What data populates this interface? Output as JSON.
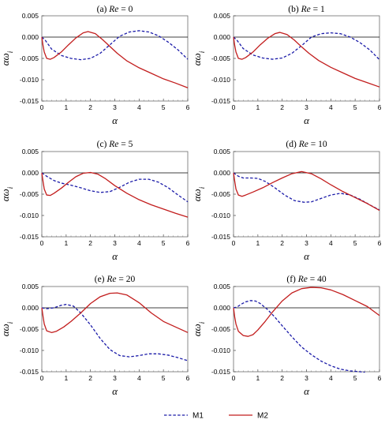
{
  "colors": {
    "m1": "#1a1aa8",
    "m2": "#c21d1d",
    "axis": "#000000"
  },
  "legend": {
    "placement": "bottom-center",
    "items": [
      "M1",
      "M2"
    ]
  },
  "chart_data": [
    {
      "type": "line",
      "title_prefix": "(a)",
      "title_var": "Re",
      "title_rest": " = 0",
      "xlabel": "α",
      "ylabel": "αω",
      "ylabel_sub": "i",
      "xlim": [
        0,
        6
      ],
      "ylim": [
        -0.015,
        0.005
      ],
      "xticks": [
        "0",
        "1",
        "2",
        "3",
        "4",
        "5",
        "6"
      ],
      "yticks": [
        "0.005",
        "0.000",
        "-0.005",
        "-0.010",
        "-0.015"
      ],
      "series": [
        {
          "name": "M1",
          "style": "dashed",
          "x": [
            0,
            0.15,
            0.4,
            0.8,
            1.2,
            1.6,
            2.0,
            2.4,
            2.8,
            3.2,
            3.6,
            4.0,
            4.4,
            4.8,
            5.2,
            5.6,
            6.0
          ],
          "y": [
            0,
            -0.0008,
            -0.0028,
            -0.0043,
            -0.005,
            -0.0053,
            -0.005,
            -0.0038,
            -0.0018,
            0.0002,
            0.0012,
            0.0015,
            0.0012,
            0.0003,
            -0.0012,
            -0.003,
            -0.0052
          ]
        },
        {
          "name": "M2",
          "style": "solid",
          "x": [
            0,
            0.05,
            0.1,
            0.2,
            0.35,
            0.5,
            0.8,
            1.1,
            1.4,
            1.7,
            1.9,
            2.2,
            2.5,
            2.8,
            3.1,
            3.5,
            4.0,
            4.5,
            5.0,
            5.5,
            6.0
          ],
          "y": [
            0,
            -0.002,
            -0.0035,
            -0.005,
            -0.0052,
            -0.0048,
            -0.0035,
            -0.0018,
            -0.0002,
            0.001,
            0.0013,
            0.0008,
            -0.0006,
            -0.0022,
            -0.0038,
            -0.0056,
            -0.0072,
            -0.0085,
            -0.0098,
            -0.0108,
            -0.0119
          ]
        }
      ]
    },
    {
      "type": "line",
      "title_prefix": "(b)",
      "title_var": "Re",
      "title_rest": " = 1",
      "xlabel": "α",
      "ylabel": "αω",
      "ylabel_sub": "i",
      "xlim": [
        0,
        6
      ],
      "ylim": [
        -0.015,
        0.005
      ],
      "xticks": [
        "0",
        "1",
        "2",
        "3",
        "4",
        "5",
        "6"
      ],
      "yticks": [
        "0.005",
        "0.000",
        "-0.005",
        "-0.010",
        "-0.015"
      ],
      "series": [
        {
          "name": "M1",
          "style": "dashed",
          "x": [
            0,
            0.15,
            0.4,
            0.8,
            1.2,
            1.6,
            2.0,
            2.4,
            2.8,
            3.2,
            3.6,
            4.0,
            4.4,
            4.8,
            5.2,
            5.6,
            6.0
          ],
          "y": [
            0,
            -0.0008,
            -0.0027,
            -0.0042,
            -0.0049,
            -0.0052,
            -0.0049,
            -0.0038,
            -0.002,
            0,
            0.0008,
            0.001,
            0.0008,
            0,
            -0.0013,
            -0.003,
            -0.0053
          ]
        },
        {
          "name": "M2",
          "style": "solid",
          "x": [
            0,
            0.05,
            0.1,
            0.2,
            0.35,
            0.5,
            0.8,
            1.1,
            1.4,
            1.7,
            1.9,
            2.2,
            2.5,
            2.8,
            3.1,
            3.5,
            4.0,
            4.5,
            5.0,
            5.5,
            6.0
          ],
          "y": [
            0,
            -0.002,
            -0.0035,
            -0.005,
            -0.0052,
            -0.0048,
            -0.0035,
            -0.0018,
            -0.0003,
            0.0008,
            0.0011,
            0.0006,
            -0.0007,
            -0.0023,
            -0.0038,
            -0.0055,
            -0.0071,
            -0.0084,
            -0.0097,
            -0.0107,
            -0.0117
          ]
        }
      ]
    },
    {
      "type": "line",
      "title_prefix": "(c)",
      "title_var": "Re",
      "title_rest": " = 5",
      "xlabel": "α",
      "ylabel": "αω",
      "ylabel_sub": "i",
      "xlim": [
        0,
        6
      ],
      "ylim": [
        -0.015,
        0.005
      ],
      "xticks": [
        "0",
        "1",
        "2",
        "3",
        "4",
        "5",
        "6"
      ],
      "yticks": [
        "0.005",
        "0.000",
        "-0.005",
        "-0.010",
        "-0.015"
      ],
      "series": [
        {
          "name": "M1",
          "style": "dashed",
          "x": [
            0,
            0.2,
            0.5,
            0.8,
            1.2,
            1.6,
            2.0,
            2.4,
            2.8,
            3.2,
            3.6,
            4.0,
            4.4,
            4.8,
            5.2,
            5.6,
            6.0
          ],
          "y": [
            0,
            -0.0008,
            -0.0018,
            -0.0024,
            -0.0029,
            -0.0035,
            -0.0042,
            -0.0046,
            -0.0044,
            -0.0034,
            -0.0022,
            -0.0015,
            -0.0015,
            -0.0022,
            -0.0035,
            -0.0052,
            -0.0068
          ]
        },
        {
          "name": "M2",
          "style": "solid",
          "x": [
            0,
            0.05,
            0.1,
            0.2,
            0.35,
            0.5,
            0.8,
            1.1,
            1.4,
            1.7,
            2.0,
            2.3,
            2.6,
            3.0,
            3.5,
            4.0,
            4.5,
            5.0,
            5.5,
            6.0
          ],
          "y": [
            0,
            -0.002,
            -0.0038,
            -0.0052,
            -0.0053,
            -0.0048,
            -0.0036,
            -0.0022,
            -0.0009,
            -0.0001,
            0.0001,
            -0.0003,
            -0.0013,
            -0.003,
            -0.0048,
            -0.0063,
            -0.0075,
            -0.0085,
            -0.0095,
            -0.0104
          ]
        }
      ]
    },
    {
      "type": "line",
      "title_prefix": "(d)",
      "title_var": "Re",
      "title_rest": " = 10",
      "xlabel": "α",
      "ylabel": "αω",
      "ylabel_sub": "i",
      "xlim": [
        0,
        6
      ],
      "ylim": [
        -0.015,
        0.005
      ],
      "xticks": [
        "0",
        "1",
        "2",
        "3",
        "4",
        "5",
        "6"
      ],
      "yticks": [
        "0.005",
        "0.000",
        "-0.005",
        "-0.010",
        "-0.015"
      ],
      "series": [
        {
          "name": "M1",
          "style": "dashed",
          "x": [
            0,
            0.2,
            0.4,
            0.7,
            1.0,
            1.3,
            1.7,
            2.1,
            2.5,
            2.9,
            3.2,
            3.6,
            4.0,
            4.4,
            4.8,
            5.2,
            5.6,
            6.0
          ],
          "y": [
            0,
            -0.0008,
            -0.0012,
            -0.0012,
            -0.0013,
            -0.002,
            -0.0035,
            -0.0052,
            -0.0065,
            -0.0069,
            -0.0068,
            -0.006,
            -0.0052,
            -0.0048,
            -0.0052,
            -0.0062,
            -0.0075,
            -0.0087
          ]
        },
        {
          "name": "M2",
          "style": "solid",
          "x": [
            0,
            0.05,
            0.1,
            0.2,
            0.35,
            0.5,
            0.8,
            1.2,
            1.6,
            2.0,
            2.4,
            2.8,
            3.2,
            3.6,
            4.0,
            4.5,
            5.0,
            5.5,
            6.0
          ],
          "y": [
            0,
            -0.002,
            -0.0038,
            -0.0052,
            -0.0055,
            -0.0052,
            -0.0045,
            -0.0035,
            -0.0023,
            -0.0012,
            -0.0002,
            0.0003,
            -0.0002,
            -0.0014,
            -0.0028,
            -0.0044,
            -0.0058,
            -0.0072,
            -0.0088
          ]
        }
      ]
    },
    {
      "type": "line",
      "title_prefix": "(e)",
      "title_var": "Re",
      "title_rest": " = 20",
      "xlabel": "α",
      "ylabel": "αω",
      "ylabel_sub": "i",
      "xlim": [
        0,
        6
      ],
      "ylim": [
        -0.015,
        0.005
      ],
      "xticks": [
        "0",
        "1",
        "2",
        "3",
        "4",
        "5",
        "6"
      ],
      "yticks": [
        "0.005",
        "0.000",
        "-0.005",
        "-0.010",
        "-0.015"
      ],
      "series": [
        {
          "name": "M1",
          "style": "dashed",
          "x": [
            0,
            0.2,
            0.5,
            0.8,
            1.0,
            1.3,
            1.6,
            2.0,
            2.4,
            2.8,
            3.2,
            3.6,
            4.0,
            4.4,
            4.8,
            5.2,
            5.6,
            6.0
          ],
          "y": [
            0,
            -0.0002,
            0,
            0.0006,
            0.0008,
            0.0004,
            -0.0012,
            -0.004,
            -0.0072,
            -0.0098,
            -0.0112,
            -0.0115,
            -0.0112,
            -0.0108,
            -0.0108,
            -0.0111,
            -0.0117,
            -0.0124
          ]
        },
        {
          "name": "M2",
          "style": "solid",
          "x": [
            0,
            0.05,
            0.1,
            0.2,
            0.4,
            0.6,
            0.9,
            1.2,
            1.6,
            2.0,
            2.4,
            2.8,
            3.1,
            3.5,
            4.0,
            4.5,
            5.0,
            5.5,
            6.0
          ],
          "y": [
            0,
            -0.002,
            -0.0038,
            -0.0054,
            -0.0058,
            -0.0055,
            -0.0045,
            -0.0032,
            -0.0012,
            0.001,
            0.0026,
            0.0034,
            0.0035,
            0.003,
            0.0012,
            -0.0012,
            -0.0032,
            -0.0045,
            -0.0058
          ]
        }
      ]
    },
    {
      "type": "line",
      "title_prefix": "(f)",
      "title_var": "Re",
      "title_rest": " = 40",
      "xlabel": "α",
      "ylabel": "αω",
      "ylabel_sub": "i",
      "xlim": [
        0,
        6
      ],
      "ylim": [
        -0.015,
        0.005
      ],
      "xticks": [
        "0",
        "1",
        "2",
        "3",
        "4",
        "5",
        "6"
      ],
      "yticks": [
        "0.005",
        "0.000",
        "-0.005",
        "-0.010",
        "-0.015"
      ],
      "series": [
        {
          "name": "M1",
          "style": "dashed",
          "x": [
            0,
            0.15,
            0.3,
            0.5,
            0.7,
            0.9,
            1.1,
            1.4,
            1.7,
            2.0,
            2.4,
            2.8,
            3.2,
            3.6,
            4.0,
            4.4,
            4.8,
            5.2,
            5.4
          ],
          "y": [
            0,
            0.0002,
            0.0008,
            0.0014,
            0.0017,
            0.0016,
            0.001,
            -0.0004,
            -0.0022,
            -0.0042,
            -0.0068,
            -0.0092,
            -0.011,
            -0.0125,
            -0.0136,
            -0.0144,
            -0.0148,
            -0.015,
            -0.0151
          ]
        },
        {
          "name": "M2",
          "style": "solid",
          "x": [
            0,
            0.05,
            0.1,
            0.2,
            0.4,
            0.6,
            0.8,
            1.0,
            1.3,
            1.6,
            2.0,
            2.4,
            2.8,
            3.2,
            3.6,
            4.0,
            4.5,
            5.0,
            5.5,
            6.0
          ],
          "y": [
            0,
            -0.0022,
            -0.0038,
            -0.0055,
            -0.0065,
            -0.0067,
            -0.0063,
            -0.0052,
            -0.0032,
            -0.001,
            0.0016,
            0.0035,
            0.0045,
            0.0048,
            0.0047,
            0.0042,
            0.0031,
            0.0017,
            0.0003,
            -0.0018
          ]
        }
      ]
    }
  ]
}
